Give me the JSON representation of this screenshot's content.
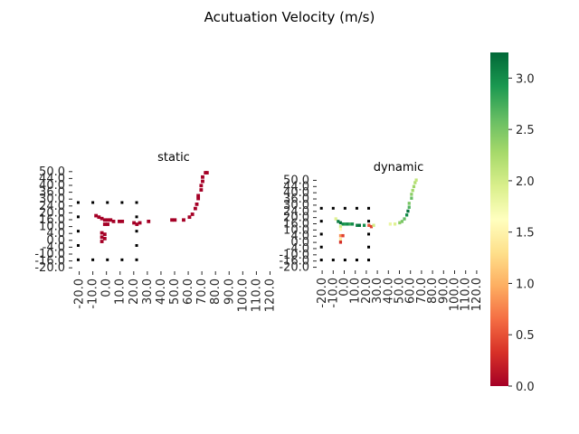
{
  "figure": {
    "title": "Acutuation Velocity (m/s)"
  },
  "chart_data": [
    {
      "type": "heatmap",
      "title": "static",
      "x_ticks": [
        "-20.0",
        "-10.0",
        "0.0",
        "10.0",
        "20.0",
        "30.0",
        "40.0",
        "50.0",
        "60.0",
        "70.0",
        "80.0",
        "90.0",
        "100.0",
        "110.0",
        "120.0"
      ],
      "y_ticks": [
        "50.0",
        "44.0",
        "40.0",
        "36.0",
        "30.0",
        "24.0",
        "20.0",
        "16.0",
        "10.0",
        "4.0",
        "0.0",
        "-4.0",
        "-10.0",
        "-16.0",
        "-20.0"
      ],
      "xlim": [
        -20,
        120
      ],
      "ylim": [
        -20,
        52
      ],
      "markers": [
        {
          "x": -16,
          "y": 28
        },
        {
          "x": -6,
          "y": 28
        },
        {
          "x": 4,
          "y": 28
        },
        {
          "x": 14,
          "y": 28
        },
        {
          "x": 24,
          "y": 28
        },
        {
          "x": -16,
          "y": 18
        },
        {
          "x": 24,
          "y": 18
        },
        {
          "x": -16,
          "y": 8
        },
        {
          "x": 24,
          "y": 8
        },
        {
          "x": -16,
          "y": -2
        },
        {
          "x": 24,
          "y": -2
        },
        {
          "x": -16,
          "y": -12
        },
        {
          "x": -6,
          "y": -12
        },
        {
          "x": 4,
          "y": -12
        },
        {
          "x": 14,
          "y": -12
        },
        {
          "x": 24,
          "y": -12
        }
      ],
      "cells": [
        {
          "x": -4,
          "y": 19,
          "v": 0
        },
        {
          "x": -2,
          "y": 18,
          "v": 0
        },
        {
          "x": 0,
          "y": 17,
          "v": 0
        },
        {
          "x": 2,
          "y": 16,
          "v": 0
        },
        {
          "x": 4,
          "y": 16,
          "v": 0
        },
        {
          "x": 6,
          "y": 16,
          "v": 0
        },
        {
          "x": 8,
          "y": 15,
          "v": 0
        },
        {
          "x": 12,
          "y": 15,
          "v": 0
        },
        {
          "x": 14,
          "y": 15,
          "v": 0
        },
        {
          "x": 22,
          "y": 14,
          "v": 0
        },
        {
          "x": 24,
          "y": 13,
          "v": 0
        },
        {
          "x": 26,
          "y": 14,
          "v": 0
        },
        {
          "x": 32,
          "y": 15,
          "v": 0
        },
        {
          "x": 2,
          "y": 13,
          "v": 0
        },
        {
          "x": 4,
          "y": 13,
          "v": 0
        },
        {
          "x": 0,
          "y": 7,
          "v": 0
        },
        {
          "x": 2,
          "y": 6,
          "v": 0
        },
        {
          "x": 0,
          "y": 4,
          "v": 0
        },
        {
          "x": 2,
          "y": 3,
          "v": 0
        },
        {
          "x": 0,
          "y": 1,
          "v": 0
        },
        {
          "x": 48,
          "y": 16,
          "v": 0
        },
        {
          "x": 50,
          "y": 16,
          "v": 0
        },
        {
          "x": 56,
          "y": 16,
          "v": 0
        },
        {
          "x": 60,
          "y": 18,
          "v": 0
        },
        {
          "x": 62,
          "y": 20,
          "v": 0
        },
        {
          "x": 64,
          "y": 24,
          "v": 0
        },
        {
          "x": 65,
          "y": 27,
          "v": 0
        },
        {
          "x": 66,
          "y": 31,
          "v": 0
        },
        {
          "x": 66,
          "y": 33,
          "v": 0
        },
        {
          "x": 68,
          "y": 37,
          "v": 0
        },
        {
          "x": 68,
          "y": 40,
          "v": 0
        },
        {
          "x": 69,
          "y": 43,
          "v": 0
        },
        {
          "x": 69,
          "y": 46,
          "v": 0
        },
        {
          "x": 71,
          "y": 49,
          "v": 0
        },
        {
          "x": 72,
          "y": 49,
          "v": 0
        }
      ]
    },
    {
      "type": "heatmap",
      "title": "dynamic",
      "x_ticks": [
        "-20.0",
        "-10.0",
        "0.0",
        "10.0",
        "20.0",
        "30.0",
        "40.0",
        "50.0",
        "60.0",
        "70.0",
        "80.0",
        "90.0",
        "100.0",
        "110.0",
        "120.0"
      ],
      "y_ticks": [
        "50.0",
        "44.0",
        "40.0",
        "36.0",
        "30.0",
        "24.0",
        "20.0",
        "16.0",
        "10.0",
        "4.0",
        "0.0",
        "-4.0",
        "-10.0",
        "-16.0",
        "-20.0"
      ],
      "xlim": [
        -20,
        120
      ],
      "ylim": [
        -20,
        52
      ],
      "markers": [
        {
          "x": -16,
          "y": 28
        },
        {
          "x": -6,
          "y": 28
        },
        {
          "x": 4,
          "y": 28
        },
        {
          "x": 14,
          "y": 28
        },
        {
          "x": 24,
          "y": 28
        },
        {
          "x": -16,
          "y": 18
        },
        {
          "x": 24,
          "y": 18
        },
        {
          "x": -16,
          "y": 8
        },
        {
          "x": 24,
          "y": 8
        },
        {
          "x": -16,
          "y": -2
        },
        {
          "x": 24,
          "y": -2
        },
        {
          "x": -16,
          "y": -12
        },
        {
          "x": -6,
          "y": -12
        },
        {
          "x": 4,
          "y": -12
        },
        {
          "x": 14,
          "y": -12
        },
        {
          "x": 24,
          "y": -12
        }
      ],
      "cells": [
        {
          "x": -4,
          "y": 20,
          "v": 1.9
        },
        {
          "x": -2,
          "y": 18,
          "v": 3.1
        },
        {
          "x": 0,
          "y": 17,
          "v": 3.2
        },
        {
          "x": 2,
          "y": 16,
          "v": 3.0
        },
        {
          "x": 4,
          "y": 16,
          "v": 2.9
        },
        {
          "x": 6,
          "y": 16,
          "v": 3.0
        },
        {
          "x": 8,
          "y": 16,
          "v": 2.8
        },
        {
          "x": 10,
          "y": 16,
          "v": 3.0
        },
        {
          "x": 14,
          "y": 15,
          "v": 3.1
        },
        {
          "x": 16,
          "y": 15,
          "v": 3.2
        },
        {
          "x": 20,
          "y": 15,
          "v": 3.0
        },
        {
          "x": 24,
          "y": 15,
          "v": 0.5
        },
        {
          "x": 26,
          "y": 14,
          "v": 0.4
        },
        {
          "x": 28,
          "y": 15,
          "v": 2.0
        },
        {
          "x": 0,
          "y": 14,
          "v": 2.0
        },
        {
          "x": 0,
          "y": 12,
          "v": 1.6
        },
        {
          "x": 0,
          "y": 7,
          "v": 0.8
        },
        {
          "x": 2,
          "y": 7,
          "v": 0.4
        },
        {
          "x": 0,
          "y": 4,
          "v": 1.4
        },
        {
          "x": 0,
          "y": 2,
          "v": 0.3
        },
        {
          "x": 42,
          "y": 16,
          "v": 1.8
        },
        {
          "x": 46,
          "y": 16,
          "v": 1.9
        },
        {
          "x": 50,
          "y": 17,
          "v": 2.4
        },
        {
          "x": 52,
          "y": 18,
          "v": 2.5
        },
        {
          "x": 54,
          "y": 20,
          "v": 2.6
        },
        {
          "x": 56,
          "y": 23,
          "v": 3.0
        },
        {
          "x": 57,
          "y": 26,
          "v": 3.2
        },
        {
          "x": 58,
          "y": 29,
          "v": 2.7
        },
        {
          "x": 58,
          "y": 32,
          "v": 2.5
        },
        {
          "x": 60,
          "y": 36,
          "v": 2.6
        },
        {
          "x": 60,
          "y": 39,
          "v": 2.4
        },
        {
          "x": 61,
          "y": 42,
          "v": 2.3
        },
        {
          "x": 62,
          "y": 45,
          "v": 2.3
        },
        {
          "x": 63,
          "y": 48,
          "v": 2.2
        },
        {
          "x": 64,
          "y": 50,
          "v": 2.1
        }
      ]
    }
  ],
  "colorbar": {
    "min": 0.0,
    "max": 3.25,
    "ticks": [
      "0.0",
      "0.5",
      "1.0",
      "1.5",
      "2.0",
      "2.5",
      "3.0"
    ],
    "colormap": "RdYlGn",
    "colors": [
      "#a50026",
      "#d73027",
      "#f46d43",
      "#fdae61",
      "#fee08b",
      "#ffffbf",
      "#d9ef8b",
      "#a6d96a",
      "#66bd63",
      "#1a9850",
      "#006837"
    ]
  }
}
